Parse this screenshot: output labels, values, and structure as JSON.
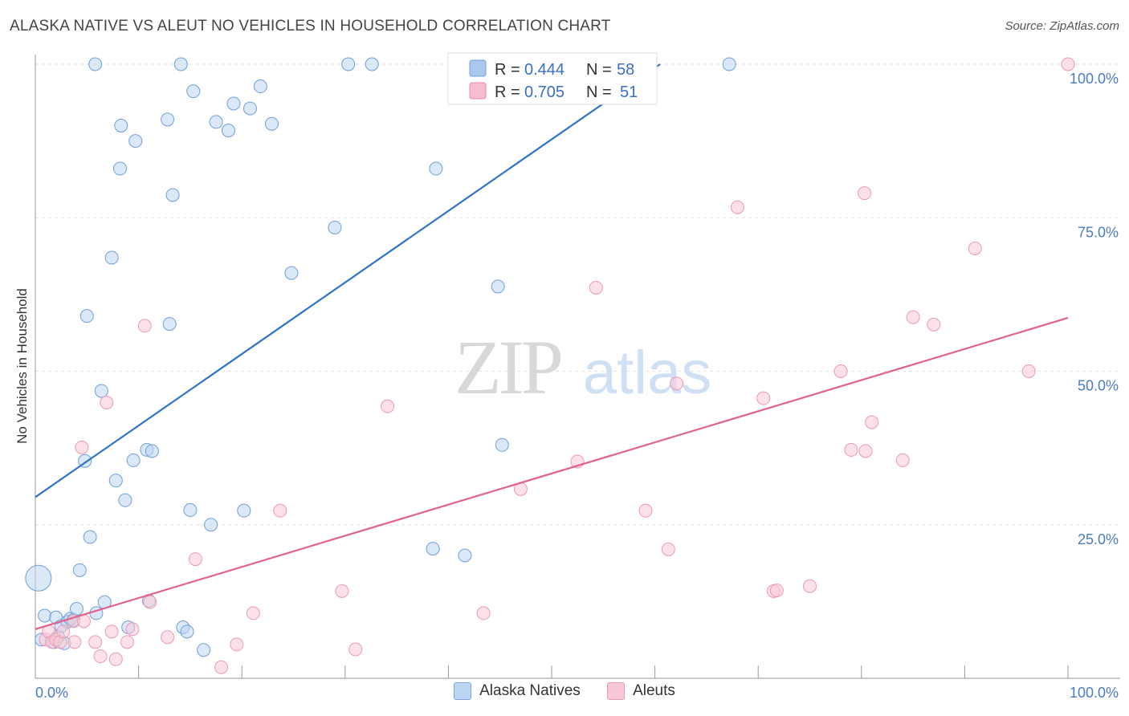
{
  "title": "ALASKA NATIVE VS ALEUT NO VEHICLES IN HOUSEHOLD CORRELATION CHART",
  "source": "Source: ZipAtlas.com",
  "watermark": {
    "zip": "ZIP",
    "atlas": "atlas"
  },
  "legend_stats": [
    {
      "r_label": "R =",
      "r_value": "0.444",
      "n_label": "N =",
      "n_value": "58",
      "color": "#a9c8ee",
      "stroke": "#6f9fd8"
    },
    {
      "r_label": "R =",
      "r_value": "0.705",
      "n_label": "N =",
      "n_value": "51",
      "color": "#f7bccd",
      "stroke": "#e88aa6"
    }
  ],
  "bottom_legend": [
    {
      "label": "Alaska Natives",
      "color": "#bcd5f3",
      "stroke": "#7aa6dc"
    },
    {
      "label": "Aleuts",
      "color": "#f9c8d6",
      "stroke": "#e99ab2"
    }
  ],
  "chart_data": {
    "type": "scatter",
    "title": "ALASKA NATIVE VS ALEUT NO VEHICLES IN HOUSEHOLD CORRELATION CHART",
    "xlabel": "",
    "ylabel": "No Vehicles in Household",
    "xlim": [
      0,
      100
    ],
    "ylim": [
      0,
      100
    ],
    "x_tick_labels": [
      "0.0%",
      "100.0%"
    ],
    "y_tick_labels": [
      {
        "value": 25,
        "label": "25.0%"
      },
      {
        "value": 50,
        "label": "50.0%"
      },
      {
        "value": 75,
        "label": "75.0%"
      },
      {
        "value": 100,
        "label": "100.0%"
      }
    ],
    "series": [
      {
        "name": "Alaska Natives",
        "color": "#bcd5f3",
        "stroke": "#6f9fd8",
        "line_color": "#2f74c8",
        "trend": {
          "x": [
            0,
            60.5
          ],
          "y": [
            29.5,
            100
          ]
        },
        "points": [
          [
            0.3,
            16.3,
            3
          ],
          [
            0.6,
            6.3,
            1
          ],
          [
            0.9,
            10.2,
            1
          ],
          [
            1.8,
            5.9,
            1
          ],
          [
            2.0,
            9.9,
            1
          ],
          [
            2.2,
            6.8,
            1
          ],
          [
            2.5,
            8.5,
            1
          ],
          [
            2.8,
            5.7,
            1
          ],
          [
            3.1,
            9.2,
            1
          ],
          [
            3.4,
            9.7,
            1
          ],
          [
            3.7,
            9.5,
            1
          ],
          [
            4.0,
            11.3,
            1
          ],
          [
            4.3,
            17.6,
            1
          ],
          [
            4.8,
            35.4,
            1
          ],
          [
            5.0,
            59.0,
            1
          ],
          [
            5.3,
            23.0,
            1
          ],
          [
            5.8,
            100.0,
            1
          ],
          [
            5.9,
            10.6,
            1
          ],
          [
            6.4,
            46.8,
            1
          ],
          [
            6.7,
            12.4,
            1
          ],
          [
            7.4,
            68.5,
            1
          ],
          [
            7.8,
            32.2,
            1
          ],
          [
            8.2,
            83.0,
            1
          ],
          [
            8.3,
            90.0,
            1
          ],
          [
            8.7,
            29.0,
            1
          ],
          [
            9.0,
            8.3,
            1
          ],
          [
            9.5,
            35.5,
            1
          ],
          [
            9.7,
            87.5,
            1
          ],
          [
            10.8,
            37.2,
            1
          ],
          [
            11.0,
            12.6,
            1
          ],
          [
            11.3,
            37.0,
            1
          ],
          [
            12.8,
            91.0,
            1
          ],
          [
            13.0,
            57.7,
            1
          ],
          [
            13.3,
            78.7,
            1
          ],
          [
            14.1,
            100.0,
            1
          ],
          [
            14.3,
            8.3,
            1
          ],
          [
            14.7,
            7.6,
            1
          ],
          [
            15.0,
            27.4,
            1
          ],
          [
            15.3,
            95.6,
            1
          ],
          [
            16.3,
            4.6,
            1
          ],
          [
            17.0,
            25.0,
            1
          ],
          [
            17.5,
            90.6,
            1
          ],
          [
            18.7,
            89.2,
            1
          ],
          [
            19.2,
            93.6,
            1
          ],
          [
            20.2,
            27.3,
            1
          ],
          [
            20.8,
            92.8,
            1
          ],
          [
            21.8,
            96.4,
            1
          ],
          [
            22.9,
            90.3,
            1
          ],
          [
            24.8,
            66.0,
            1
          ],
          [
            29.0,
            73.4,
            1
          ],
          [
            30.3,
            100.0,
            1
          ],
          [
            32.6,
            100.0,
            1
          ],
          [
            38.5,
            21.1,
            1
          ],
          [
            38.8,
            83.0,
            1
          ],
          [
            41.6,
            20.0,
            1
          ],
          [
            44.8,
            63.8,
            1
          ],
          [
            45.2,
            38.0,
            1
          ],
          [
            67.2,
            100.0,
            1
          ]
        ]
      },
      {
        "name": "Aleuts",
        "color": "#f9c8d6",
        "stroke": "#e99ab2",
        "line_color": "#e0628d",
        "trend": {
          "x": [
            0,
            100
          ],
          "y": [
            8.0,
            58.7
          ]
        },
        "points": [
          [
            1.0,
            6.3,
            1
          ],
          [
            1.3,
            7.6,
            1
          ],
          [
            1.6,
            5.9,
            1
          ],
          [
            2.0,
            6.3,
            1
          ],
          [
            2.4,
            5.9,
            1
          ],
          [
            2.7,
            7.6,
            1
          ],
          [
            3.7,
            9.3,
            1
          ],
          [
            3.8,
            5.9,
            1
          ],
          [
            4.5,
            37.6,
            1
          ],
          [
            4.7,
            9.3,
            1
          ],
          [
            5.8,
            5.9,
            1
          ],
          [
            6.3,
            3.6,
            1
          ],
          [
            6.9,
            44.9,
            1
          ],
          [
            7.4,
            7.6,
            1
          ],
          [
            7.8,
            3.1,
            1
          ],
          [
            8.9,
            5.9,
            1
          ],
          [
            9.4,
            8.0,
            1
          ],
          [
            10.6,
            57.4,
            1
          ],
          [
            11.1,
            12.4,
            1
          ],
          [
            12.8,
            6.7,
            1
          ],
          [
            15.5,
            19.4,
            1
          ],
          [
            18.0,
            1.8,
            1
          ],
          [
            19.5,
            5.5,
            1
          ],
          [
            21.1,
            10.6,
            1
          ],
          [
            23.7,
            27.3,
            1
          ],
          [
            29.7,
            14.2,
            1
          ],
          [
            31.0,
            4.7,
            1
          ],
          [
            34.1,
            44.3,
            1
          ],
          [
            43.4,
            10.6,
            1
          ],
          [
            47.0,
            30.8,
            1
          ],
          [
            52.5,
            35.3,
            1
          ],
          [
            54.3,
            63.6,
            1
          ],
          [
            59.1,
            27.3,
            1
          ],
          [
            61.3,
            21.0,
            1
          ],
          [
            62.1,
            48.0,
            1
          ],
          [
            68.0,
            76.7,
            1
          ],
          [
            70.5,
            45.6,
            1
          ],
          [
            71.5,
            14.2,
            1
          ],
          [
            71.8,
            14.3,
            1
          ],
          [
            75.0,
            15.0,
            1
          ],
          [
            78.0,
            50.0,
            1
          ],
          [
            79.0,
            37.2,
            1
          ],
          [
            80.3,
            79.0,
            1
          ],
          [
            80.4,
            37.0,
            1
          ],
          [
            81.0,
            41.7,
            1
          ],
          [
            84.0,
            35.5,
            1
          ],
          [
            85.0,
            58.8,
            1
          ],
          [
            87.0,
            57.6,
            1
          ],
          [
            91.0,
            70.0,
            1
          ],
          [
            96.2,
            50.0,
            1
          ],
          [
            100.0,
            100.0,
            1
          ]
        ]
      }
    ]
  }
}
